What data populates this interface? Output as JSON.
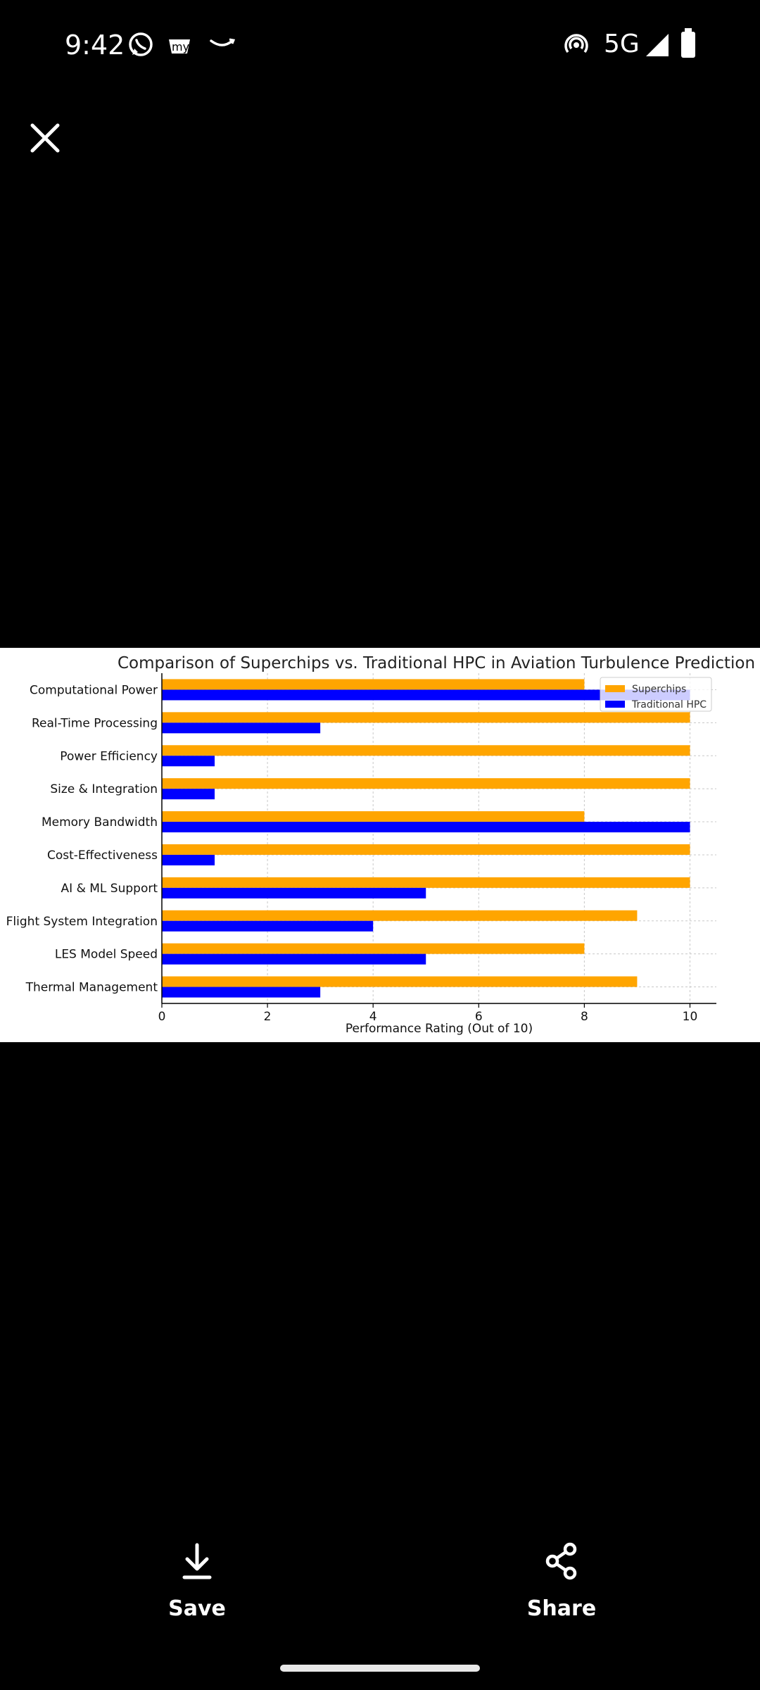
{
  "status_bar": {
    "time": "9:42",
    "left_icons": [
      "whatsapp-icon",
      "myntra-icon",
      "amazon-icon"
    ],
    "right_icons": [
      "hotspot-icon",
      "signal-icon",
      "battery-icon"
    ],
    "network": "5G"
  },
  "viewer": {
    "close_icon": "close-icon",
    "actions": [
      {
        "label": "Save",
        "icon": "download-icon"
      },
      {
        "label": "Share",
        "icon": "share-icon"
      }
    ]
  },
  "chart_data": {
    "type": "bar",
    "orientation": "horizontal",
    "title": "Comparison of Superchips vs. Traditional HPC in Aviation Turbulence Prediction",
    "xlabel": "Performance Rating (Out of 10)",
    "ylabel": "",
    "xlim": [
      0,
      10.5
    ],
    "xticks": [
      0,
      2,
      4,
      6,
      8,
      10
    ],
    "grid": true,
    "legend_position": "top-right",
    "categories": [
      "Computational Power",
      "Real-Time Processing",
      "Power Efficiency",
      "Size & Integration",
      "Memory Bandwidth",
      "Cost-Effectiveness",
      "AI & ML Support",
      "Flight System Integration",
      "LES Model Speed",
      "Thermal Management"
    ],
    "series": [
      {
        "name": "Superchips",
        "color": "#FFA500",
        "values": [
          8,
          10,
          10,
          10,
          8,
          10,
          10,
          9,
          8,
          9
        ]
      },
      {
        "name": "Traditional HPC",
        "color": "#0000FF",
        "values": [
          10,
          3,
          1,
          1,
          10,
          1,
          5,
          4,
          5,
          3
        ]
      }
    ]
  }
}
